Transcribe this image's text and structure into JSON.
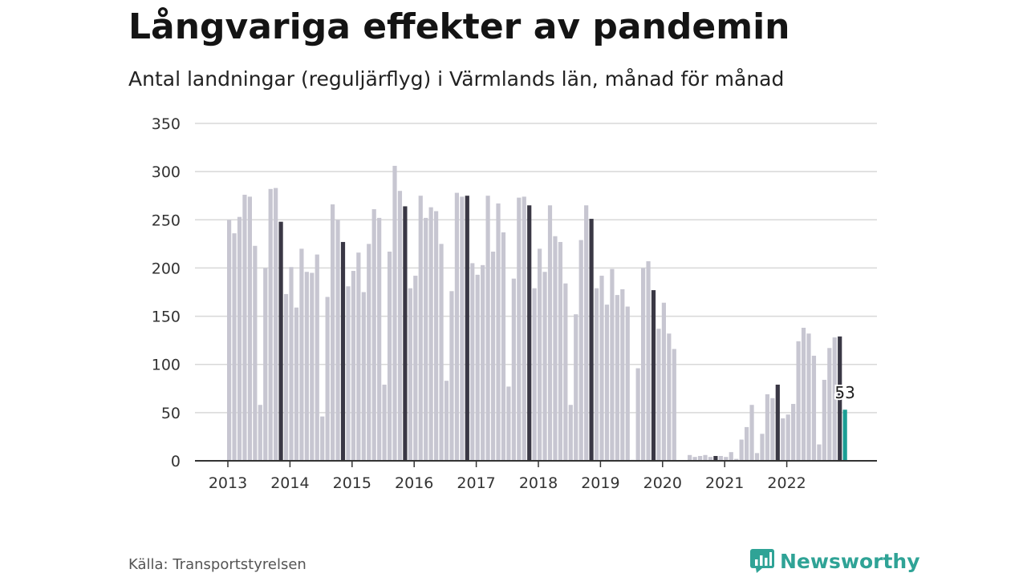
{
  "title": "Långvariga effekter av pandemin",
  "subtitle": "Antal landningar (reguljärflyg) i Värmlands län, månad för månad",
  "source": "Källa: Transportstyrelsen",
  "brand": {
    "name": "Newsworthy",
    "icon": "newsworthy-logo-icon"
  },
  "colors": {
    "bar": "#c7c6d1",
    "highlight": "#3a3845",
    "latest": "#1a9e94",
    "grid": "#d8d8d8",
    "axis": "#333333",
    "brand": "#2fa396"
  },
  "chart_data": {
    "type": "bar",
    "title": "Långvariga effekter av pandemin",
    "subtitle": "Antal landningar (reguljärflyg) i Värmlands län, månad för månad",
    "start": "2013-01",
    "xticks": [
      "2013",
      "2014",
      "2015",
      "2016",
      "2017",
      "2018",
      "2019",
      "2020",
      "2021",
      "2022"
    ],
    "yticks": [
      0,
      50,
      100,
      150,
      200,
      250,
      300,
      350
    ],
    "ylim": [
      0,
      350
    ],
    "grid": true,
    "highlight_month": "November",
    "latest_label": "53",
    "values": [
      250,
      236,
      253,
      276,
      274,
      223,
      58,
      200,
      282,
      283,
      248,
      173,
      201,
      159,
      220,
      196,
      195,
      214,
      46,
      170,
      266,
      250,
      227,
      181,
      197,
      216,
      175,
      225,
      261,
      252,
      79,
      217,
      306,
      280,
      264,
      179,
      192,
      275,
      252,
      263,
      259,
      225,
      83,
      176,
      278,
      274,
      275,
      205,
      193,
      203,
      275,
      217,
      267,
      237,
      77,
      189,
      273,
      274,
      265,
      179,
      220,
      196,
      265,
      233,
      227,
      184,
      58,
      152,
      229,
      265,
      251,
      179,
      192,
      162,
      199,
      172,
      178,
      160,
      1,
      96,
      200,
      207,
      177,
      137,
      164,
      132,
      116,
      0,
      0,
      6,
      4,
      5,
      6,
      4,
      5,
      5,
      4,
      9,
      2,
      22,
      35,
      58,
      8,
      28,
      69,
      65,
      79,
      44,
      48,
      59,
      124,
      138,
      132,
      109,
      17,
      84,
      117,
      128,
      129,
      53
    ]
  }
}
